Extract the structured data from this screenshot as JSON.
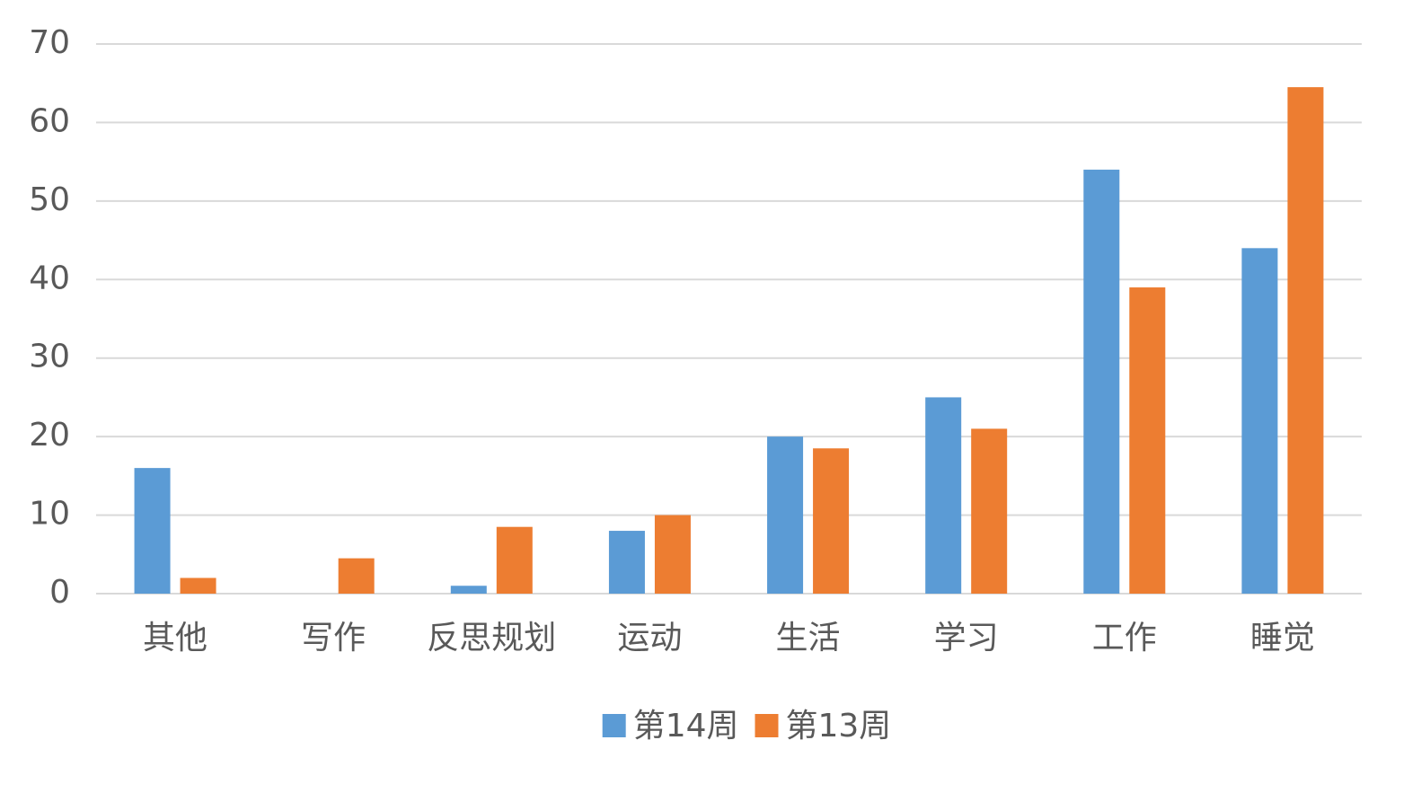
{
  "chart_data": {
    "type": "bar",
    "categories": [
      "其他",
      "写作",
      "反思规划",
      "运动",
      "生活",
      "学习",
      "工作",
      "睡觉"
    ],
    "series": [
      {
        "name": "第14周",
        "color": "#5b9bd5",
        "values": [
          16,
          0,
          1,
          8,
          20,
          25,
          54,
          44
        ]
      },
      {
        "name": "第13周",
        "color": "#ed7d31",
        "values": [
          2,
          4.5,
          8.5,
          10,
          18.5,
          21,
          39,
          64.5
        ]
      }
    ],
    "ylim": [
      0,
      70
    ],
    "yticks": [
      0,
      10,
      20,
      30,
      40,
      50,
      60,
      70
    ],
    "grid": true,
    "legend": "bottom"
  }
}
